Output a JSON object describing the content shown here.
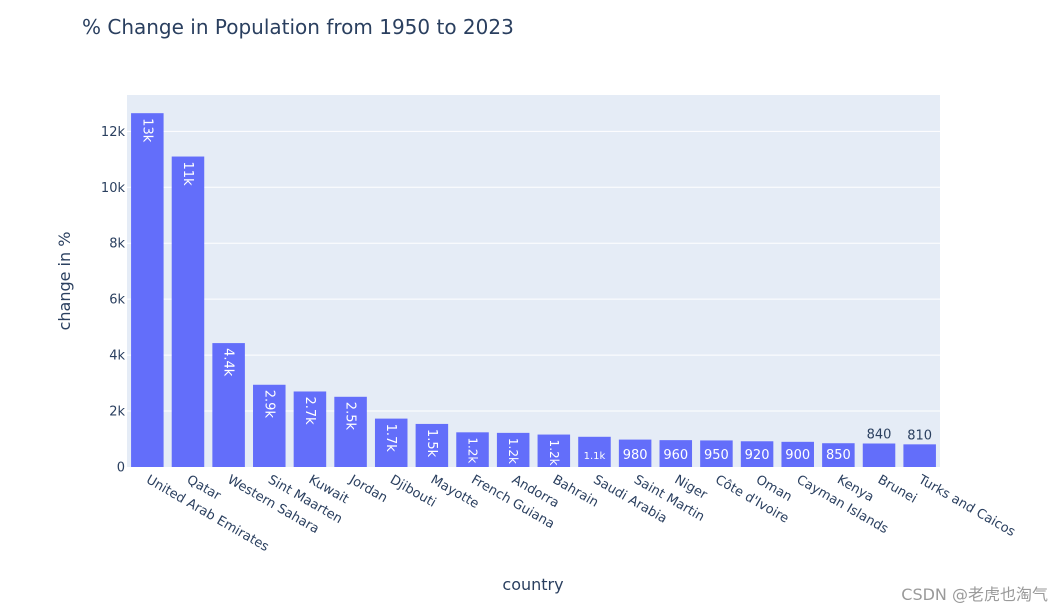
{
  "chart_data": {
    "type": "bar",
    "title": "% Change in Population from 1950 to 2023",
    "xlabel": "country",
    "ylabel": "change in %",
    "ylim": [
      0,
      13300
    ],
    "yticks": [
      0,
      2000,
      4000,
      6000,
      8000,
      10000,
      12000
    ],
    "ytick_labels": [
      "0",
      "2k",
      "4k",
      "6k",
      "8k",
      "10k",
      "12k"
    ],
    "grid": true,
    "bar_color": "#636efa",
    "plot_bg": "#e5ecf6",
    "categories": [
      "United Arab Emirates",
      "Qatar",
      "Western Sahara",
      "Sint Maarten",
      "Kuwait",
      "Jordan",
      "Djibouti",
      "Mayotte",
      "French Guiana",
      "Andorra",
      "Bahrain",
      "Saudi Arabia",
      "Saint Martin",
      "Niger",
      "Côte d'Ivoire",
      "Oman",
      "Cayman Islands",
      "Kenya",
      "Brunei",
      "Turks and Caicos"
    ],
    "values": [
      12650,
      11100,
      4430,
      2940,
      2700,
      2510,
      1730,
      1540,
      1240,
      1220,
      1160,
      1080,
      980,
      960,
      950,
      920,
      900,
      850,
      840,
      810
    ],
    "data_labels": [
      "13k",
      "11k",
      "4.4k",
      "2.9k",
      "2.7k",
      "2.5k",
      "1.7k",
      "1.5k",
      "1.2k",
      "1.2k",
      "1.2k",
      "1.1k",
      "980",
      "960",
      "950",
      "920",
      "900",
      "850",
      "840",
      "810"
    ]
  },
  "watermark": "CSDN @老虎也淘气"
}
